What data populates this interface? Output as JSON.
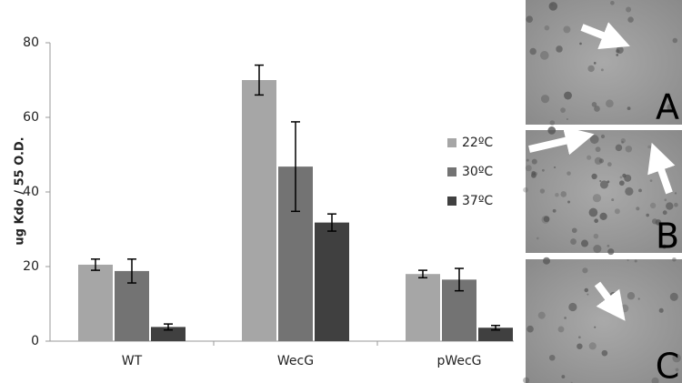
{
  "chart_data": {
    "type": "bar",
    "y_label": "ug Kdo / 55 O.D.",
    "categories": [
      "WT",
      "WecG",
      "pWecG"
    ],
    "series": [
      {
        "name": "22ºC",
        "color": "#a6a6a6",
        "values": [
          20.5,
          70,
          18
        ],
        "errors": [
          1.5,
          4,
          1
        ]
      },
      {
        "name": "30ºC",
        "color": "#737373",
        "values": [
          18.8,
          46.8,
          16.5
        ],
        "errors": [
          3.2,
          12,
          3
        ]
      },
      {
        "name": "37ºC",
        "color": "#404040",
        "values": [
          3.8,
          31.8,
          3.6
        ],
        "errors": [
          0.8,
          2.3,
          0.6
        ]
      }
    ],
    "ylim": [
      0,
      80
    ],
    "yticks": [
      0,
      20,
      40,
      60,
      80
    ],
    "grid": false,
    "legend": "right"
  },
  "panels": {
    "labels": [
      "A",
      "B",
      "C"
    ]
  }
}
